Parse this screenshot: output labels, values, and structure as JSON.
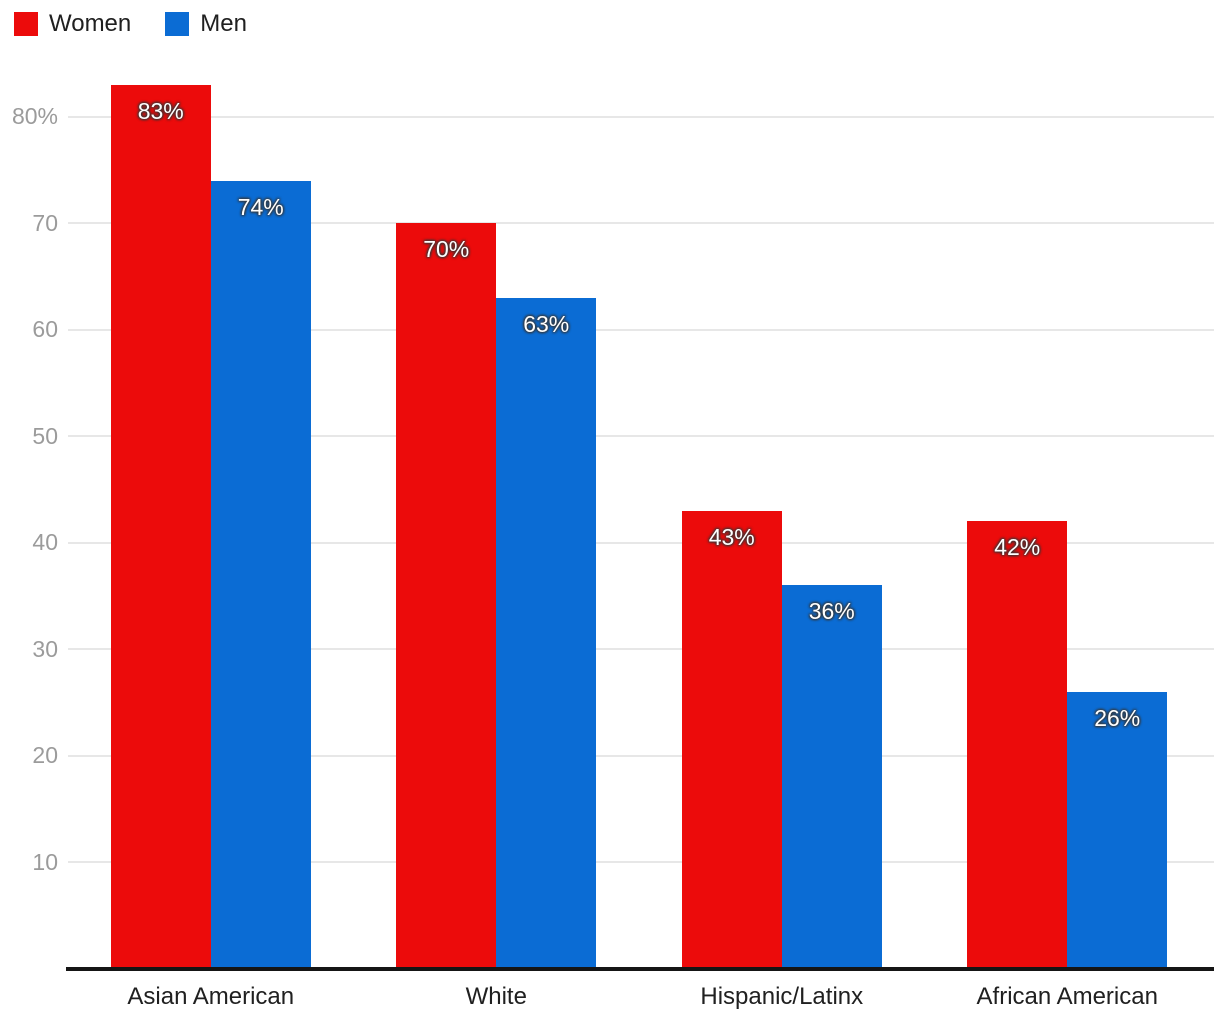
{
  "chart_data": {
    "type": "bar",
    "title": "",
    "categories": [
      "Asian American",
      "White",
      "Hispanic/Latinx",
      "African American"
    ],
    "series": [
      {
        "name": "Women",
        "color": "#ec0b0b",
        "values": [
          83,
          70,
          43,
          42
        ],
        "data_labels": [
          "83%",
          "70%",
          "43%",
          "42%"
        ]
      },
      {
        "name": "Men",
        "color": "#0b6cd4",
        "values": [
          74,
          63,
          36,
          26
        ],
        "data_labels": [
          "74%",
          "63%",
          "36%",
          "26%"
        ]
      }
    ],
    "y_axis": {
      "min": 0,
      "max": 80,
      "ticks": [
        10,
        20,
        30,
        40,
        50,
        60,
        70,
        80
      ],
      "tick_labels": [
        "10",
        "20",
        "30",
        "40",
        "50",
        "60",
        "70",
        "80%"
      ],
      "grid": true,
      "grid_color": "#e7e7e7",
      "tick_text_color": "#9b9b9b"
    },
    "x_axis": {
      "line_color": "#151515",
      "label_color": "#202020"
    },
    "legend_position": "top-left",
    "value_label_color": "#ffffff"
  }
}
